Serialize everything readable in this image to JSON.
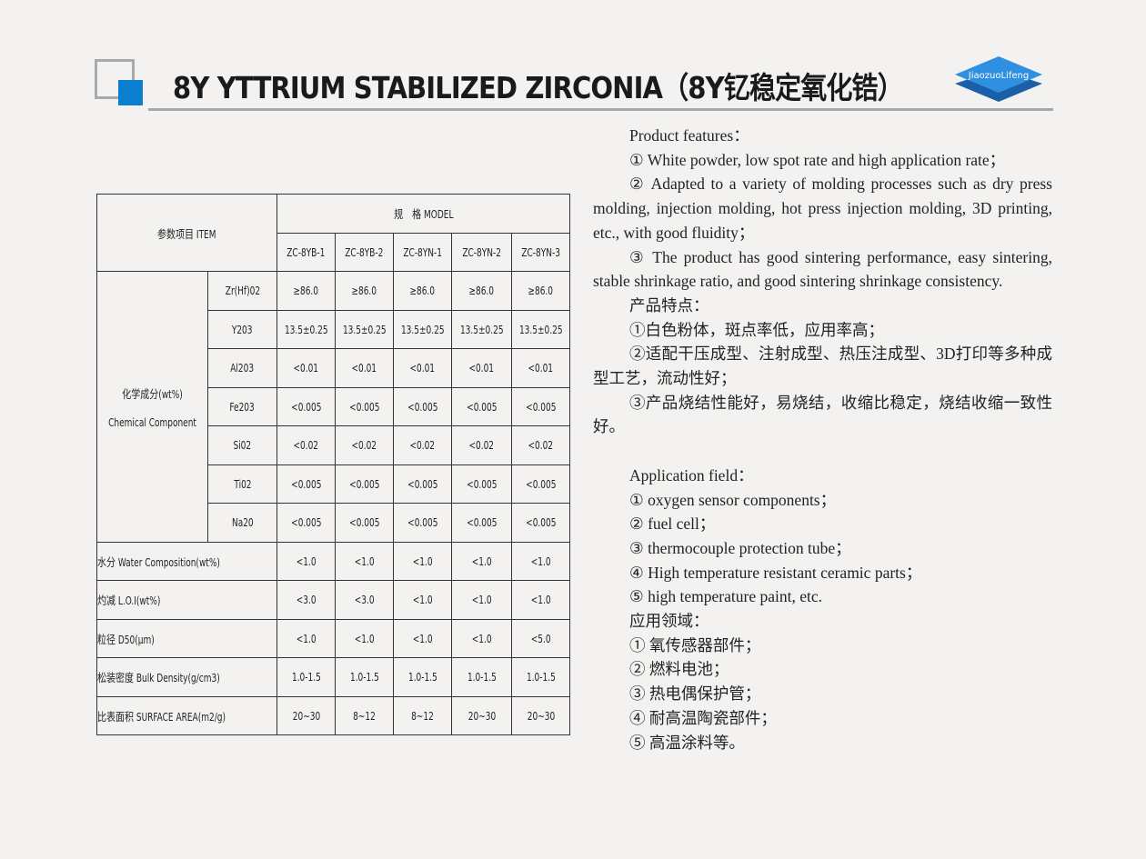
{
  "header": {
    "title": "8Y YTTRIUM STABILIZED ZIRCONIA（8Y钇稳定氧化锆）",
    "brand": "JiaozuoLifeng",
    "accent": "#0a7fd0"
  },
  "table": {
    "item_header": "参数项目 ITEM",
    "model_header": "规　格 MODEL",
    "models": [
      "ZC-8YB-1",
      "ZC-8YB-2",
      "ZC-8YN-1",
      "ZC-8YN-2",
      "ZC-8YN-3"
    ],
    "chem_group": "化学成分(wt%)",
    "chem_group_en": "Chemical Component",
    "chem_rows": [
      {
        "name": "Zr(Hf)02",
        "values": [
          "≥86.0",
          "≥86.0",
          "≥86.0",
          "≥86.0",
          "≥86.0"
        ]
      },
      {
        "name": "Y203",
        "values": [
          "13.5±0.25",
          "13.5±0.25",
          "13.5±0.25",
          "13.5±0.25",
          "13.5±0.25"
        ]
      },
      {
        "name": "Al203",
        "values": [
          "<0.01",
          "<0.01",
          "<0.01",
          "<0.01",
          "<0.01"
        ]
      },
      {
        "name": "Fe203",
        "values": [
          "<0.005",
          "<0.005",
          "<0.005",
          "<0.005",
          "<0.005"
        ]
      },
      {
        "name": "Si02",
        "values": [
          "<0.02",
          "<0.02",
          "<0.02",
          "<0.02",
          "<0.02"
        ]
      },
      {
        "name": "Ti02",
        "values": [
          "<0.005",
          "<0.005",
          "<0.005",
          "<0.005",
          "<0.005"
        ]
      },
      {
        "name": "Na20",
        "values": [
          "<0.005",
          "<0.005",
          "<0.005",
          "<0.005",
          "<0.005"
        ]
      }
    ],
    "other_rows": [
      {
        "name": "水分 Water Composition(wt%)",
        "values": [
          "<1.0",
          "<1.0",
          "<1.0",
          "<1.0",
          "<1.0"
        ]
      },
      {
        "name": "灼减 L.O.I(wt%)",
        "values": [
          "<3.0",
          "<3.0",
          "<1.0",
          "<1.0",
          "<1.0"
        ]
      },
      {
        "name": "粒径 D50(μm)",
        "values": [
          "<1.0",
          "<1.0",
          "<1.0",
          "<1.0",
          "<5.0"
        ]
      },
      {
        "name": "松装密度 Bulk Density(g/cm3)",
        "values": [
          "1.0-1.5",
          "1.0-1.5",
          "1.0-1.5",
          "1.0-1.5",
          "1.0-1.5"
        ]
      },
      {
        "name": "比表面积 SURFACE AREA(m2/g)",
        "values": [
          "20~30",
          "8~12",
          "8~12",
          "20~30",
          "20~30"
        ]
      }
    ]
  },
  "text": {
    "features_en_title": "Product features：",
    "features_en": [
      "① White powder, low spot rate and high application rate；",
      "② Adapted to a variety of molding processes such as dry press molding, injection molding, hot press injection molding, 3D printing, etc., with good fluidity；",
      "③ The product has good sintering performance, easy sintering, stable shrinkage ratio, and good sintering shrinkage consistency."
    ],
    "features_cn_title": "产品特点：",
    "features_cn": [
      "①白色粉体，斑点率低，应用率高；",
      "②适配干压成型、注射成型、热压注成型、3D打印等多种成型工艺，流动性好；",
      "③产品烧结性能好，易烧结，收缩比稳定，烧结收缩一致性好。"
    ],
    "app_en_title": "Application field：",
    "app_en": [
      "① oxygen sensor components；",
      "② fuel cell；",
      "③ thermocouple protection tube；",
      "④ High temperature resistant ceramic parts；",
      "⑤ high temperature paint, etc."
    ],
    "app_cn_title": "应用领域：",
    "app_cn": [
      "① 氧传感器部件；",
      "② 燃料电池；",
      "③ 热电偶保护管；",
      "④ 耐高温陶瓷部件；",
      "⑤ 高温涂料等。"
    ]
  }
}
